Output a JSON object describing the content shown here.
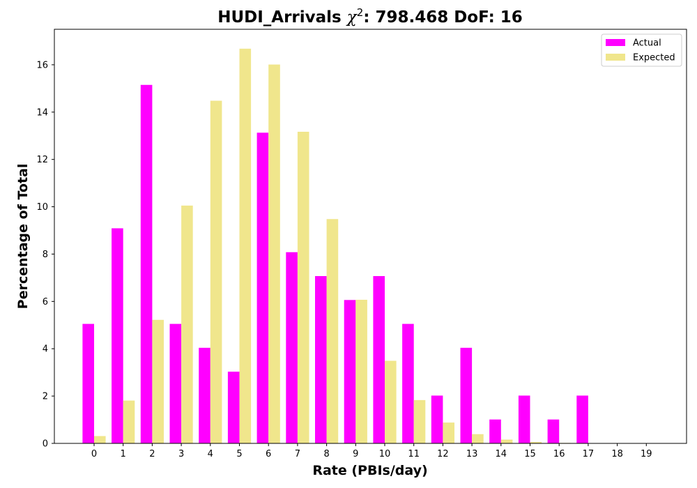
{
  "chart_data": {
    "type": "bar",
    "title_text": "HUDI_Arrivals",
    "title_chi": "χ",
    "title_sup": "2",
    "title_rest": ": 798.468 DoF: 16",
    "xlabel": "Rate (PBIs/day)",
    "ylabel": "Percentage of Total",
    "categories": [
      "0",
      "1",
      "2",
      "3",
      "4",
      "5",
      "6",
      "7",
      "8",
      "9",
      "10",
      "11",
      "12",
      "13",
      "14",
      "15",
      "16",
      "17",
      "18",
      "19"
    ],
    "ylim": [
      0,
      17.5
    ],
    "yticks": [
      0,
      2,
      4,
      6,
      8,
      10,
      12,
      14,
      16
    ],
    "grid": false,
    "legend_position": "top-right",
    "series": [
      {
        "name": "Actual",
        "color": "#ff00ff",
        "values": [
          5.05,
          9.09,
          15.15,
          5.05,
          4.04,
          3.03,
          13.13,
          8.08,
          7.07,
          6.06,
          7.07,
          5.05,
          2.02,
          4.04,
          1.01,
          2.02,
          1.01,
          2.02,
          0,
          0
        ]
      },
      {
        "name": "Expected",
        "color": "#f0e68c",
        "values": [
          0.31,
          1.81,
          5.22,
          10.05,
          14.48,
          16.68,
          16.01,
          13.17,
          9.48,
          6.07,
          3.49,
          1.83,
          0.88,
          0.39,
          0.16,
          0.06,
          0.02,
          0.01,
          0.0,
          0.0
        ]
      }
    ]
  }
}
